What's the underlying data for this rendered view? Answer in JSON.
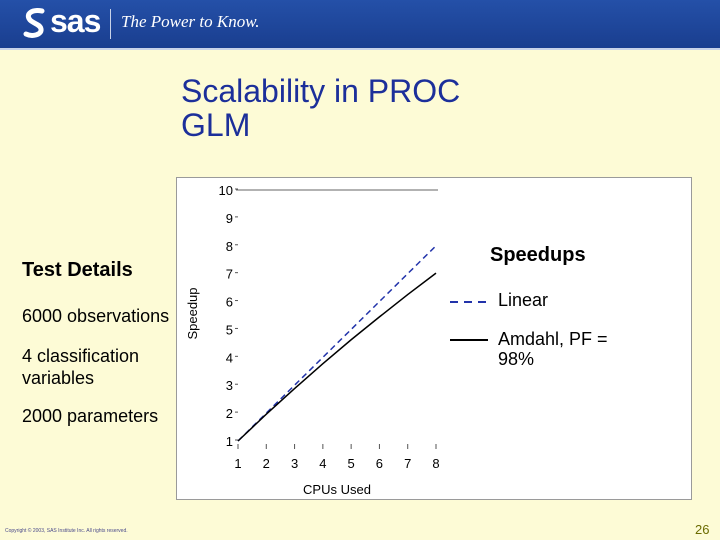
{
  "header": {
    "logo_text": "sas",
    "tagline": "The Power to Know."
  },
  "slide": {
    "title_line1": "Scalability in PROC",
    "title_line2": "GLM",
    "details_heading": "Test Details",
    "details": [
      "6000 observations",
      "4 classification variables",
      "2000 parameters"
    ],
    "copyright": "Copyright © 2003, SAS Institute Inc. All rights reserved.",
    "page_number": "26"
  },
  "chart_data": {
    "type": "line",
    "xlabel": "CPUs Used",
    "ylabel": "Speedup",
    "x_ticks": [
      1,
      2,
      3,
      4,
      5,
      6,
      7,
      8
    ],
    "y_ticks": [
      1,
      2,
      3,
      4,
      5,
      6,
      7,
      8,
      9,
      10
    ],
    "xlim": [
      1,
      8
    ],
    "ylim": [
      1,
      10
    ],
    "legend_title": "Speedups",
    "legend_position": "right",
    "series": [
      {
        "name": "Linear",
        "style": "dashed",
        "color": "#2233aa",
        "x": [
          1,
          2,
          3,
          4,
          5,
          6,
          7,
          8
        ],
        "y": [
          1,
          2,
          3,
          4,
          5,
          6,
          7,
          8
        ]
      },
      {
        "name": "Amdahl, PF = 98%",
        "style": "solid",
        "color": "#000000",
        "x": [
          1,
          2,
          3,
          4,
          5,
          6,
          7,
          8
        ],
        "y": [
          1,
          1.96,
          2.88,
          3.77,
          4.63,
          5.45,
          6.25,
          7.02
        ]
      }
    ]
  }
}
